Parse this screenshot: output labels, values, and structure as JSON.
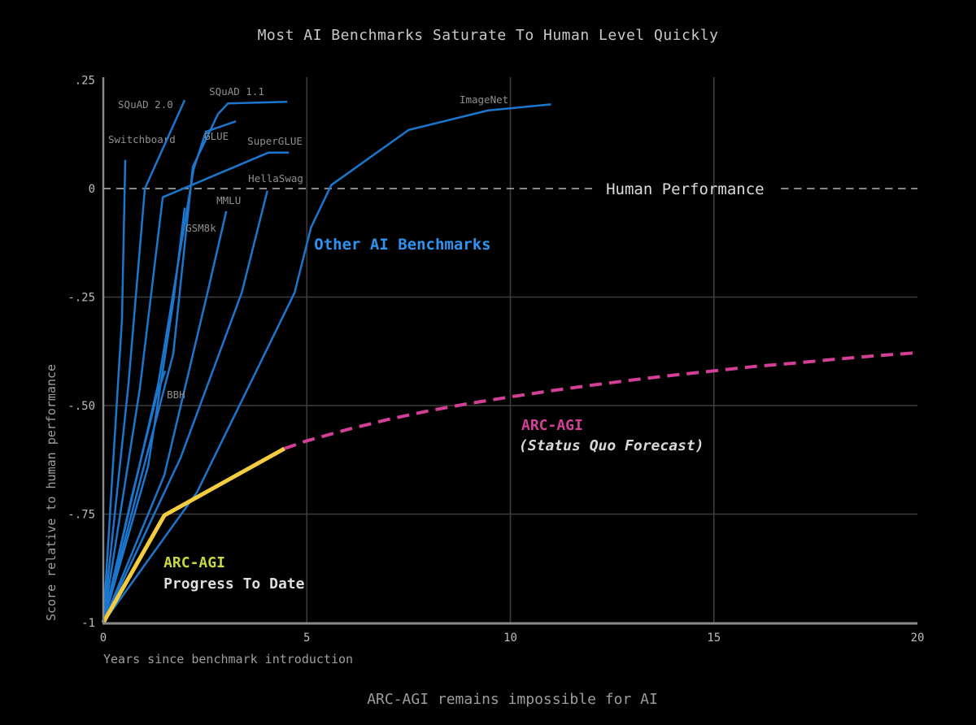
{
  "chart_data": {
    "type": "line",
    "title": "Most AI Benchmarks Saturate To Human Level Quickly",
    "caption": "ARC-AGI remains impossible for AI",
    "xlabel": "Years since benchmark introduction",
    "ylabel": "Score relative to human performance",
    "xlim": [
      0,
      20
    ],
    "ylim": [
      -1,
      0.25
    ],
    "grid_on": true,
    "x_ticks": [
      {
        "v": 0,
        "label": "0"
      },
      {
        "v": 5,
        "label": "5"
      },
      {
        "v": 10,
        "label": "10"
      },
      {
        "v": 15,
        "label": "15"
      },
      {
        "v": 20,
        "label": "20"
      }
    ],
    "y_ticks": [
      {
        "v": 0.25,
        "label": ".25"
      },
      {
        "v": 0,
        "label": "0"
      },
      {
        "v": -0.25,
        "label": "-.25"
      },
      {
        "v": -0.5,
        "label": "-.50"
      },
      {
        "v": -0.75,
        "label": "-.75"
      },
      {
        "v": -1,
        "label": "-1"
      }
    ],
    "grid": {
      "x": [
        5,
        10,
        15
      ],
      "y": [
        -0.25,
        -0.5,
        -0.75
      ]
    },
    "colors": {
      "background": "#000000",
      "axis": "#8a8a8a",
      "grid": "#3c3c3c",
      "tick_text": "#bdbdbd",
      "benchmark_line": "#1b76ce",
      "benchmark_label": "#8f8f8f",
      "other_label": "#2e93f0",
      "progress_line": "#f3cc3f",
      "progress_label": "#c9d83c",
      "forecast_line": "#d23f94",
      "white_text": "#dedede"
    },
    "human_line": {
      "value": 0,
      "segments": [
        [
          0,
          12.1
        ],
        [
          16.65,
          20
        ]
      ],
      "label": "Human Performance",
      "label_pos": [
        12.35,
        -0.013
      ],
      "color": "#8a8a8a",
      "label_color": "#dcdcdc"
    },
    "benchmarks": {
      "group_label": {
        "text": "Other AI Benchmarks",
        "pos": [
          5.18,
          -0.14
        ],
        "color": "#2e93f0"
      },
      "line_color": "#1b76ce",
      "label_color": "#8f8f8f",
      "series": [
        {
          "name": "Switchboard",
          "label_pos": [
            0.12,
            0.105
          ],
          "points": [
            [
              0,
              -1
            ],
            [
              0.46,
              -0.3
            ],
            [
              0.54,
              0.066
            ]
          ]
        },
        {
          "name": "SQuAD 2.0",
          "label_pos": [
            0.36,
            0.185
          ],
          "points": [
            [
              0,
              -1
            ],
            [
              0.62,
              -0.45
            ],
            [
              1.02,
              0.0
            ],
            [
              2.0,
              0.204
            ]
          ]
        },
        {
          "name": "SQuAD 1.1",
          "label_pos": [
            2.6,
            0.215
          ],
          "points": [
            [
              0,
              -1
            ],
            [
              1.72,
              -0.38
            ],
            [
              2.2,
              0.05
            ],
            [
              2.82,
              0.172
            ],
            [
              3.06,
              0.196
            ],
            [
              4.52,
              0.2
            ]
          ]
        },
        {
          "name": "GLUE",
          "label_pos": [
            2.48,
            0.112
          ],
          "points": [
            [
              0,
              -1
            ],
            [
              1.35,
              -0.45
            ],
            [
              2.22,
              0.045
            ],
            [
              2.52,
              0.131
            ],
            [
              3.26,
              0.155
            ]
          ]
        },
        {
          "name": "SuperGLUE",
          "label_pos": [
            3.54,
            0.101
          ],
          "points": [
            [
              0,
              -1
            ],
            [
              0.9,
              -0.46
            ],
            [
              1.46,
              -0.02
            ],
            [
              4.06,
              0.083
            ],
            [
              4.56,
              0.083
            ]
          ]
        },
        {
          "name": "HellaSwag",
          "label_pos": [
            3.56,
            0.015
          ],
          "points": [
            [
              0,
              -1
            ],
            [
              1.9,
              -0.62
            ],
            [
              3.4,
              -0.24
            ],
            [
              4.03,
              -0.005
            ]
          ]
        },
        {
          "name": "MMLU",
          "label_pos": [
            2.78,
            -0.036
          ],
          "points": [
            [
              0,
              -1
            ],
            [
              1.5,
              -0.66
            ],
            [
              2.56,
              -0.24
            ],
            [
              3.02,
              -0.052
            ]
          ]
        },
        {
          "name": "GSM8k",
          "label_pos": [
            2.02,
            -0.099
          ],
          "points": [
            [
              0,
              -1
            ],
            [
              1.1,
              -0.64
            ],
            [
              1.72,
              -0.26
            ],
            [
              2.0,
              -0.044
            ]
          ]
        },
        {
          "name": "BBH",
          "label_pos": [
            1.56,
            -0.483
          ],
          "points": [
            [
              0,
              -1
            ],
            [
              0.7,
              -0.71
            ],
            [
              1.33,
              -0.47
            ],
            [
              1.52,
              -0.42
            ]
          ]
        },
        {
          "name": "ImageNet",
          "label_pos": [
            8.75,
            0.197
          ],
          "points": [
            [
              0,
              -1
            ],
            [
              2.3,
              -0.7
            ],
            [
              4.7,
              -0.24
            ],
            [
              5.1,
              -0.09
            ],
            [
              5.6,
              0.008
            ],
            [
              7.5,
              0.135
            ],
            [
              9.45,
              0.18
            ],
            [
              11.0,
              0.194
            ]
          ]
        }
      ]
    },
    "arc_agi_progress": {
      "label_line1": "ARC-AGI",
      "label_line2": "Progress To Date",
      "color": "#f3cc3f",
      "label1_color": "#c9d83c",
      "label2_color": "#dedede",
      "label1_pos": [
        1.48,
        -0.873
      ],
      "label2_pos": [
        1.48,
        -0.921
      ],
      "points": [
        [
          0,
          -1
        ],
        [
          1.5,
          -0.753
        ],
        [
          4.45,
          -0.599
        ]
      ]
    },
    "arc_agi_forecast": {
      "label_line1": "ARC-AGI",
      "label_line2": "(Status Quo Forecast)",
      "color": "#d23f94",
      "label1_color": "#d63f98",
      "label2_color": "#d8d8d8",
      "label1_pos": [
        10.27,
        -0.556
      ],
      "label2_pos": [
        10.21,
        -0.603
      ],
      "points": [
        [
          4.45,
          -0.599
        ],
        [
          5,
          -0.581
        ],
        [
          6,
          -0.555
        ],
        [
          7,
          -0.532
        ],
        [
          8,
          -0.512
        ],
        [
          9,
          -0.495
        ],
        [
          10,
          -0.48
        ],
        [
          11,
          -0.466
        ],
        [
          12,
          -0.453
        ],
        [
          13,
          -0.441
        ],
        [
          14,
          -0.43
        ],
        [
          15,
          -0.42
        ],
        [
          16,
          -0.41
        ],
        [
          17,
          -0.402
        ],
        [
          18,
          -0.393
        ],
        [
          19,
          -0.385
        ],
        [
          20,
          -0.378
        ]
      ]
    }
  }
}
